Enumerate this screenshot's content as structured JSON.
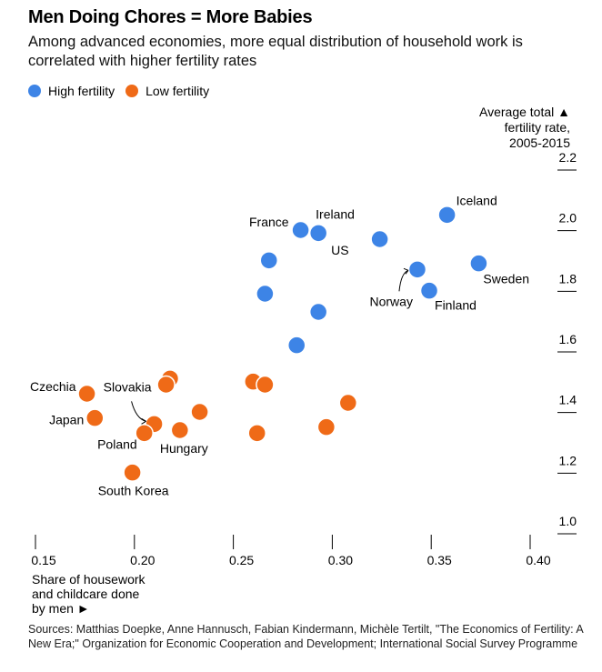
{
  "header": {
    "title": "Men Doing Chores = More Babies",
    "subtitle": "Among advanced economies, more equal distribution of household work is correlated with higher fertility rates"
  },
  "legend": [
    {
      "label": "High fertility",
      "color": "#3d84e6"
    },
    {
      "label": "Low fertility",
      "color": "#ef6a17"
    }
  ],
  "source": "Sources: Matthias Doepke, Anne Hannusch, Fabian Kindermann, Michèle Tertilt, \"The Economics of Fertility: A New Era;\" Organization for Economic Cooperation and Development; International Social Survey Programme",
  "chart_data": {
    "type": "scatter",
    "title": "Men Doing Chores = More Babies",
    "xlabel_lines": [
      "Share of housework",
      "and childcare done",
      "by men ►"
    ],
    "ylabel_lines": [
      "Average total ▲",
      "fertility rate,",
      "2005-2015"
    ],
    "xlim": [
      0.15,
      0.4
    ],
    "ylim": [
      1.0,
      2.2
    ],
    "x_ticks": [
      0.15,
      0.2,
      0.25,
      0.3,
      0.35,
      0.4
    ],
    "x_tick_labels": [
      "0.15",
      "0.20",
      "0.25",
      "0.30",
      "0.35",
      "0.40"
    ],
    "y_ticks": [
      1.0,
      1.2,
      1.4,
      1.6,
      1.8,
      2.0,
      2.2
    ],
    "y_tick_labels": [
      "1.0",
      "1.2",
      "1.4",
      "1.6",
      "1.8",
      "2.0",
      "2.2"
    ],
    "grid": false,
    "legend_position": "top-left",
    "series": [
      {
        "name": "High fertility",
        "color": "#3d84e6",
        "points": [
          {
            "x": 0.358,
            "y": 2.01,
            "label": "Iceland"
          },
          {
            "x": 0.284,
            "y": 1.96,
            "label": "France"
          },
          {
            "x": 0.293,
            "y": 1.95,
            "label": "Ireland"
          },
          {
            "x": 0.324,
            "y": 1.93,
            "label": "US"
          },
          {
            "x": 0.374,
            "y": 1.85,
            "label": "Sweden"
          },
          {
            "x": 0.343,
            "y": 1.83,
            "label": "Norway"
          },
          {
            "x": 0.349,
            "y": 1.76,
            "label": "Finland"
          },
          {
            "x": 0.268,
            "y": 1.86,
            "label": ""
          },
          {
            "x": 0.266,
            "y": 1.75,
            "label": ""
          },
          {
            "x": 0.293,
            "y": 1.69,
            "label": ""
          },
          {
            "x": 0.282,
            "y": 1.58,
            "label": ""
          }
        ]
      },
      {
        "name": "Low fertility",
        "color": "#ef6a17",
        "points": [
          {
            "x": 0.176,
            "y": 1.42,
            "label": "Czechia"
          },
          {
            "x": 0.18,
            "y": 1.34,
            "label": "Japan"
          },
          {
            "x": 0.21,
            "y": 1.32,
            "label": "Slovakia"
          },
          {
            "x": 0.205,
            "y": 1.29,
            "label": "Poland"
          },
          {
            "x": 0.223,
            "y": 1.3,
            "label": "Hungary"
          },
          {
            "x": 0.199,
            "y": 1.16,
            "label": "South Korea"
          },
          {
            "x": 0.218,
            "y": 1.47,
            "label": ""
          },
          {
            "x": 0.216,
            "y": 1.45,
            "label": ""
          },
          {
            "x": 0.233,
            "y": 1.36,
            "label": ""
          },
          {
            "x": 0.26,
            "y": 1.46,
            "label": ""
          },
          {
            "x": 0.266,
            "y": 1.45,
            "label": ""
          },
          {
            "x": 0.262,
            "y": 1.29,
            "label": ""
          },
          {
            "x": 0.308,
            "y": 1.39,
            "label": ""
          },
          {
            "x": 0.297,
            "y": 1.31,
            "label": ""
          }
        ]
      }
    ]
  }
}
